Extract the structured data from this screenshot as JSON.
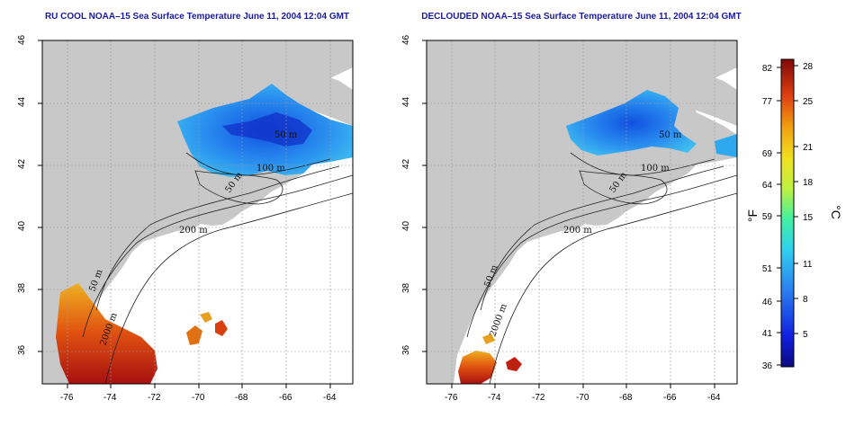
{
  "panels": [
    {
      "id": "rucool",
      "title": "RU COOL NOAA–15 Sea Surface Temperature June 11, 2004 12:04 GMT",
      "x_ticks": [
        "-76",
        "-74",
        "-72",
        "-70",
        "-68",
        "-66",
        "-64"
      ],
      "y_ticks": [
        "36",
        "38",
        "40",
        "42",
        "44",
        "46"
      ],
      "isobath_labels": [
        "50 m",
        "100 m",
        "50 m",
        "200 m",
        "50 m",
        "2000 m"
      ]
    },
    {
      "id": "declouded",
      "title": "DECLOUDED NOAA–15 Sea Surface Temperature June 11, 2004 12:04 GMT",
      "x_ticks": [
        "-76",
        "-74",
        "-72",
        "-70",
        "-68",
        "-66",
        "-64"
      ],
      "y_ticks": [
        "36",
        "38",
        "40",
        "42",
        "44",
        "46"
      ],
      "isobath_labels": [
        "50 m",
        "100 m",
        "50 m",
        "200 m",
        "50 m",
        "2000 m"
      ]
    }
  ],
  "colorbar": {
    "fahrenheit_ticks": [
      "82",
      "77",
      "69",
      "64",
      "59",
      "51",
      "46",
      "41",
      "36"
    ],
    "celsius_ticks": [
      "28",
      "25",
      "21",
      "18",
      "15",
      "11",
      "8",
      "5"
    ],
    "fahrenheit_unit": "°F",
    "celsius_unit": "°C"
  },
  "colors": {
    "land": "#c8c8c8",
    "water": "#ffffff",
    "title": "#1a1aa0",
    "grid": "#9a9a9a",
    "cold": "#1030c8",
    "cool": "#2aa0f0",
    "warm": "#f0a020",
    "hot": "#b01010"
  }
}
